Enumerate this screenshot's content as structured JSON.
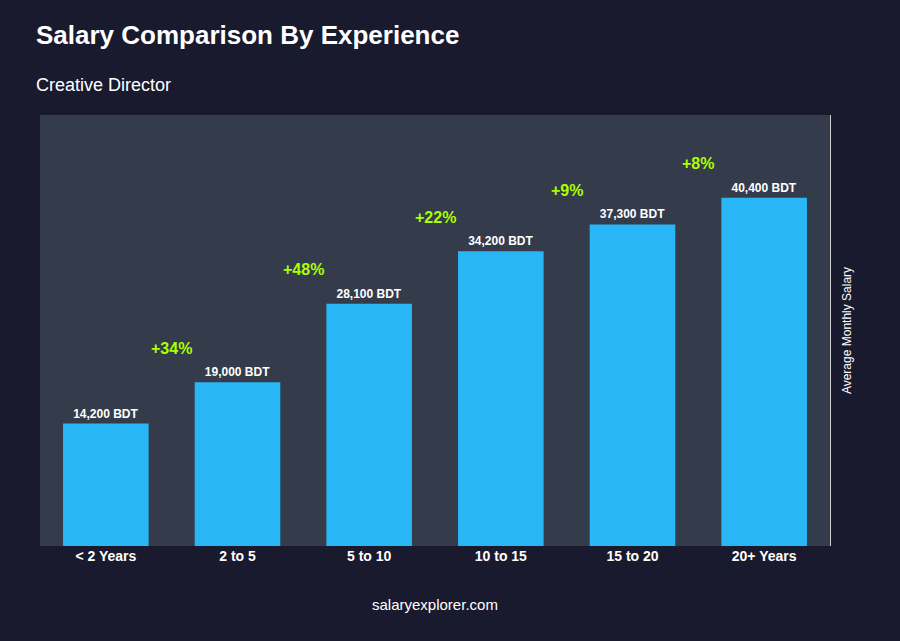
{
  "chart_data": {
    "type": "bar",
    "title": "Salary Comparison By Experience",
    "subtitle": "Creative Director",
    "ylabel": "Average Monthly Salary",
    "categories": [
      "< 2 Years",
      "2 to 5",
      "5 to 10",
      "10 to 15",
      "15 to 20",
      "20+ Years"
    ],
    "values": [
      14200,
      19000,
      28100,
      34200,
      37300,
      40400
    ],
    "value_labels": [
      "14,200 BDT",
      "19,000 BDT",
      "28,100 BDT",
      "34,200 BDT",
      "37,300 BDT",
      "40,400 BDT"
    ],
    "data_labels": true,
    "color": "#29b6f6",
    "annotations": [
      {
        "category": "2 to 5",
        "text": "+34%",
        "color": "#aaff00"
      },
      {
        "category": "5 to 10",
        "text": "+48%",
        "color": "#aaff00"
      },
      {
        "category": "10 to 15",
        "text": "+22%",
        "color": "#aaff00"
      },
      {
        "category": "15 to 20",
        "text": "+9%",
        "color": "#aaff00"
      },
      {
        "category": "20+ Years",
        "text": "+8%",
        "color": "#aaff00"
      }
    ],
    "watermark": "salaryexplorer.com",
    "ylim": [
      0,
      50000
    ],
    "grid": false,
    "tick_labels": "x"
  }
}
